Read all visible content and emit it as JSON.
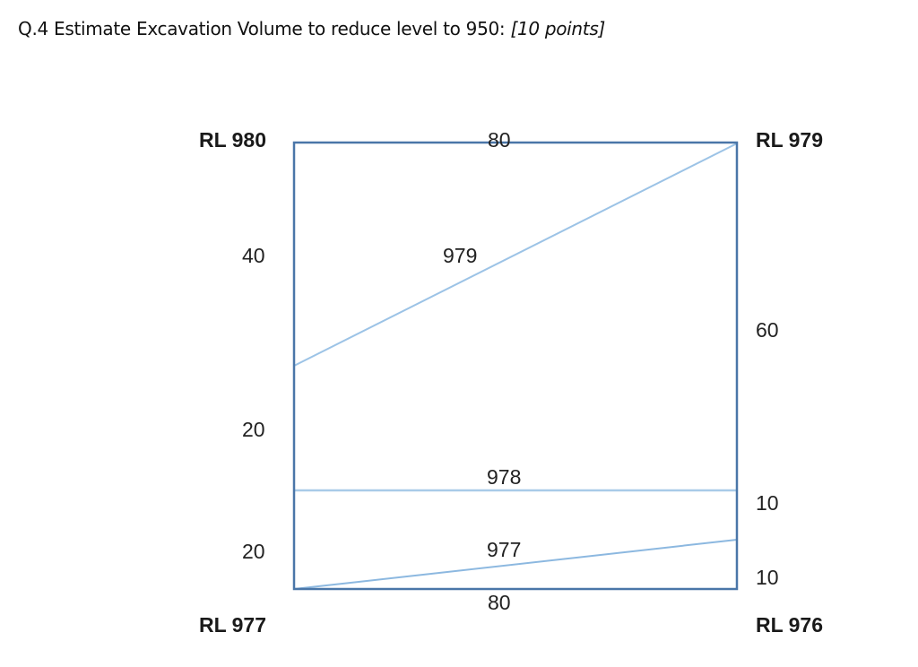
{
  "question": {
    "text": "Q.4 Estimate Excavation Volume to reduce level to 950:",
    "points": "[10 points]"
  },
  "diagram": {
    "corners": {
      "top_left": "RL 980",
      "top_right": "RL 979",
      "bottom_left": "RL 977",
      "bottom_right": "RL 976"
    },
    "dimensions": {
      "top": "80",
      "bottom": "80",
      "left": [
        "40",
        "20",
        "20"
      ],
      "right": [
        "60",
        "10",
        "10"
      ]
    },
    "contours": [
      "979",
      "978",
      "977"
    ],
    "colors": {
      "border": "#4a76a8",
      "contour": "#9cc3e6"
    }
  }
}
